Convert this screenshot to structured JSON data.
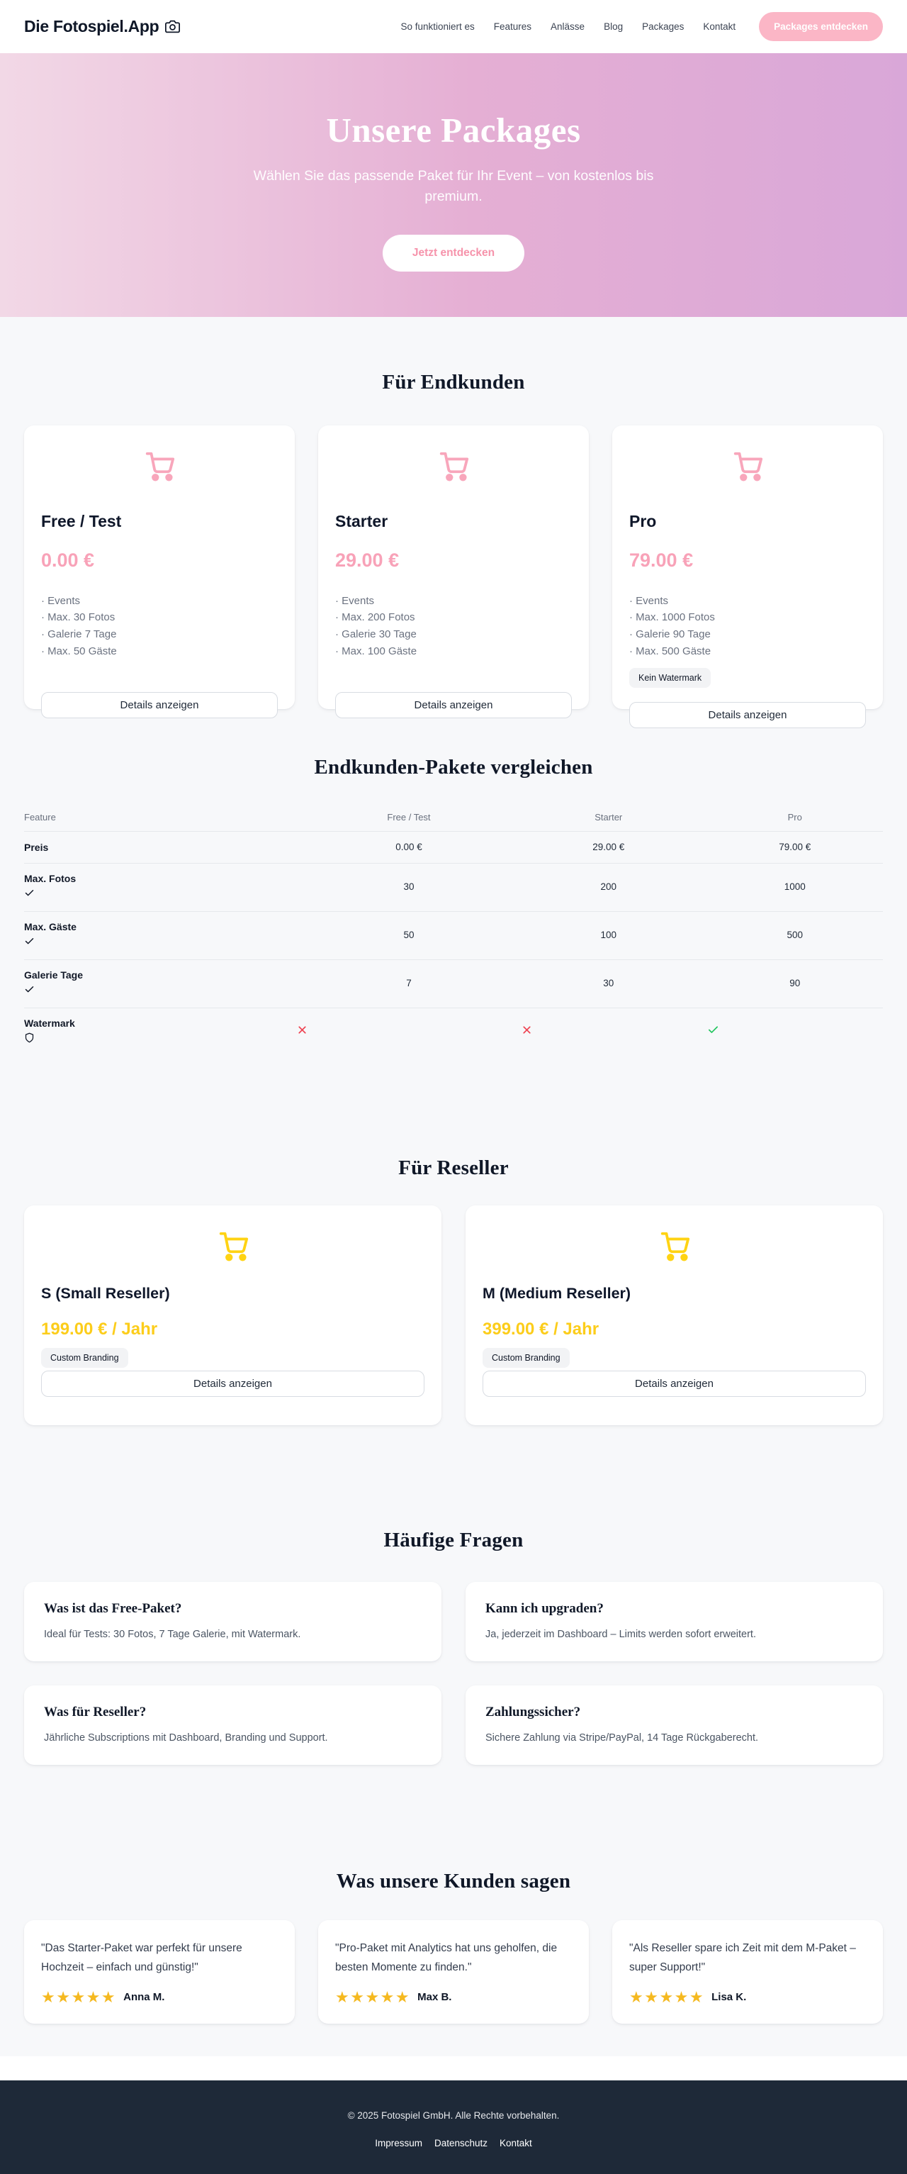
{
  "header": {
    "logo": "Die Fotospiel.App",
    "logo_icon": "camera-icon",
    "nav": [
      "So funktioniert es",
      "Features",
      "Anlässe",
      "Blog",
      "Packages",
      "Kontakt"
    ],
    "cta": "Packages entdecken"
  },
  "hero": {
    "title": "Unsere Packages",
    "subtitle": "Wählen Sie das passende Paket für Ihr Event – von kostenlos bis premium.",
    "cta": "Jetzt entdecken"
  },
  "endkunden": {
    "heading": "Für Endkunden",
    "details_label": "Details anzeigen",
    "card_icon": "shopping-cart-icon",
    "plans": [
      {
        "name": "Free / Test",
        "price": "0.00 €",
        "features": [
          "Events",
          "Max. 30 Fotos",
          "Galerie 7 Tage",
          "Max. 50 Gäste"
        ],
        "badge": null
      },
      {
        "name": "Starter",
        "price": "29.00 €",
        "features": [
          "Events",
          "Max. 200 Fotos",
          "Galerie 30 Tage",
          "Max. 100 Gäste"
        ],
        "badge": null
      },
      {
        "name": "Pro",
        "price": "79.00 €",
        "features": [
          "Events",
          "Max. 1000 Fotos",
          "Galerie 90 Tage",
          "Max. 500 Gäste"
        ],
        "badge": "Kein Watermark"
      }
    ]
  },
  "comparison": {
    "heading": "Endkunden-Pakete vergleichen",
    "columns": [
      "Feature",
      "Free / Test",
      "Starter",
      "Pro"
    ],
    "rows": [
      {
        "label": "Preis",
        "icon": null,
        "type": "text",
        "values": [
          "0.00 €",
          "29.00 €",
          "79.00 €"
        ]
      },
      {
        "label": "Max. Fotos",
        "icon": "check-icon",
        "type": "text",
        "values": [
          "30",
          "200",
          "1000"
        ]
      },
      {
        "label": "Max. Gäste",
        "icon": "check-icon",
        "type": "text",
        "values": [
          "50",
          "100",
          "500"
        ]
      },
      {
        "label": "Galerie Tage",
        "icon": "check-icon",
        "type": "text",
        "values": [
          "7",
          "30",
          "90"
        ]
      },
      {
        "label": "Watermark",
        "icon": "shield-icon",
        "type": "mark",
        "values": [
          "no",
          "no",
          "yes"
        ]
      }
    ]
  },
  "reseller": {
    "heading": "Für Reseller",
    "details_label": "Details anzeigen",
    "card_icon": "shopping-cart-icon",
    "plans": [
      {
        "name": "S (Small Reseller)",
        "price": "199.00 € / Jahr",
        "badge": "Custom Branding"
      },
      {
        "name": "M (Medium Reseller)",
        "price": "399.00 € / Jahr",
        "badge": "Custom Branding"
      }
    ]
  },
  "faq": {
    "heading": "Häufige Fragen",
    "items": [
      {
        "question": "Was ist das Free-Paket?",
        "answer": "Ideal für Tests: 30 Fotos, 7 Tage Galerie, mit Watermark."
      },
      {
        "question": "Kann ich upgraden?",
        "answer": "Ja, jederzeit im Dashboard – Limits werden sofort erweitert."
      },
      {
        "question": "Was für Reseller?",
        "answer": "Jährliche Subscriptions mit Dashboard, Branding und Support."
      },
      {
        "question": "Zahlungssicher?",
        "answer": "Sichere Zahlung via Stripe/PayPal, 14 Tage Rückgaberecht."
      }
    ]
  },
  "testimonials": {
    "heading": "Was unsere Kunden sagen",
    "star_icon": "star-icon",
    "items": [
      {
        "quote": "\"Das Starter-Paket war perfekt für unsere Hochzeit – einfach und günstig!\"",
        "name": "Anna M.",
        "rating": 5
      },
      {
        "quote": "\"Pro-Paket mit Analytics hat uns geholfen, die besten Momente zu finden.\"",
        "name": "Max B.",
        "rating": 5
      },
      {
        "quote": "\"Als Reseller spare ich Zeit mit dem M-Paket – super Support!\"",
        "name": "Lisa K.",
        "rating": 5
      }
    ]
  },
  "footer": {
    "copyright": "© 2025 Fotospiel GmbH. Alle Rechte vorbehalten.",
    "links": [
      "Impressum",
      "Datenschutz",
      "Kontakt"
    ]
  },
  "colors": {
    "accent_pink": "#f8a6bb",
    "accent_pink_button": "#fbb6c6",
    "accent_yellow": "#ffd313",
    "star_gold": "#f5b920",
    "mark_red": "#ef4452",
    "mark_green": "#22c55e",
    "footer_bg": "#1e2938",
    "page_bg": "#f7f8fa"
  }
}
